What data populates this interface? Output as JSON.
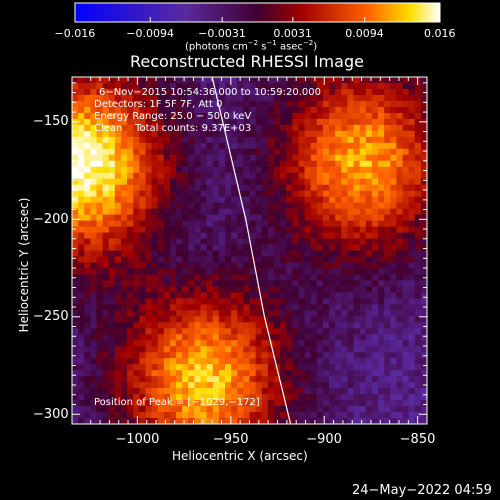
{
  "chart_data": {
    "type": "heatmap",
    "title": "Reconstructed RHESSI Image",
    "xlabel": "Heliocentric X (arcsec)",
    "ylabel": "Heliocentric Y (arcsec)",
    "xlim": [
      -1035,
      -845
    ],
    "ylim": [
      -305,
      -127
    ],
    "xticks": [
      -1000,
      -950,
      -900,
      -850
    ],
    "xtick_labels": [
      "−1000",
      "−950",
      "−900",
      "−850"
    ],
    "yticks": [
      -150,
      -200,
      -250,
      -300
    ],
    "ytick_labels": [
      "−150",
      "−200",
      "−250",
      "−300"
    ],
    "colorbar": {
      "range": [
        -0.016,
        0.016
      ],
      "ticks": [
        -0.016,
        -0.0094,
        -0.0031,
        0.0031,
        0.0094,
        0.016
      ],
      "tick_labels": [
        "−0.016",
        "−0.0094",
        "−0.0031",
        "0.0031",
        "0.0094",
        "0.016"
      ],
      "unit_prefix": "(photons cm",
      "unit_exp1": "−2",
      "unit_mid": " s",
      "unit_exp2": "−1",
      "unit_mid2": " asec",
      "unit_exp3": "−2",
      "unit_suffix": ")"
    },
    "annotations": {
      "time_range": "6−Nov−2015 10:54:36.000 to 10:59:20.000",
      "detectors": "Detectors: 1F 5F 7F, Att 0",
      "energy": "Energy Range: 25.0 − 50.0 keV",
      "method": "Clean    Total counts: 9.37E+03",
      "peak": "Position of Peak = [−1029,−172]"
    },
    "peak_position": [
      -1029,
      -172
    ],
    "sources": [
      {
        "x": -1029,
        "y": -172,
        "value": 0.016
      },
      {
        "x": -880,
        "y": -170,
        "value": 0.012
      },
      {
        "x": -965,
        "y": -282,
        "value": 0.013
      },
      {
        "x": -975,
        "y": -215,
        "value": -0.006
      }
    ],
    "limb_curve": [
      [
        -960,
        -127
      ],
      [
        -942,
        -200
      ],
      [
        -932,
        -250
      ],
      [
        -918,
        -305
      ]
    ],
    "grid": false,
    "legend": "none"
  },
  "footer": {
    "date": "24−May−2022 04:59"
  }
}
